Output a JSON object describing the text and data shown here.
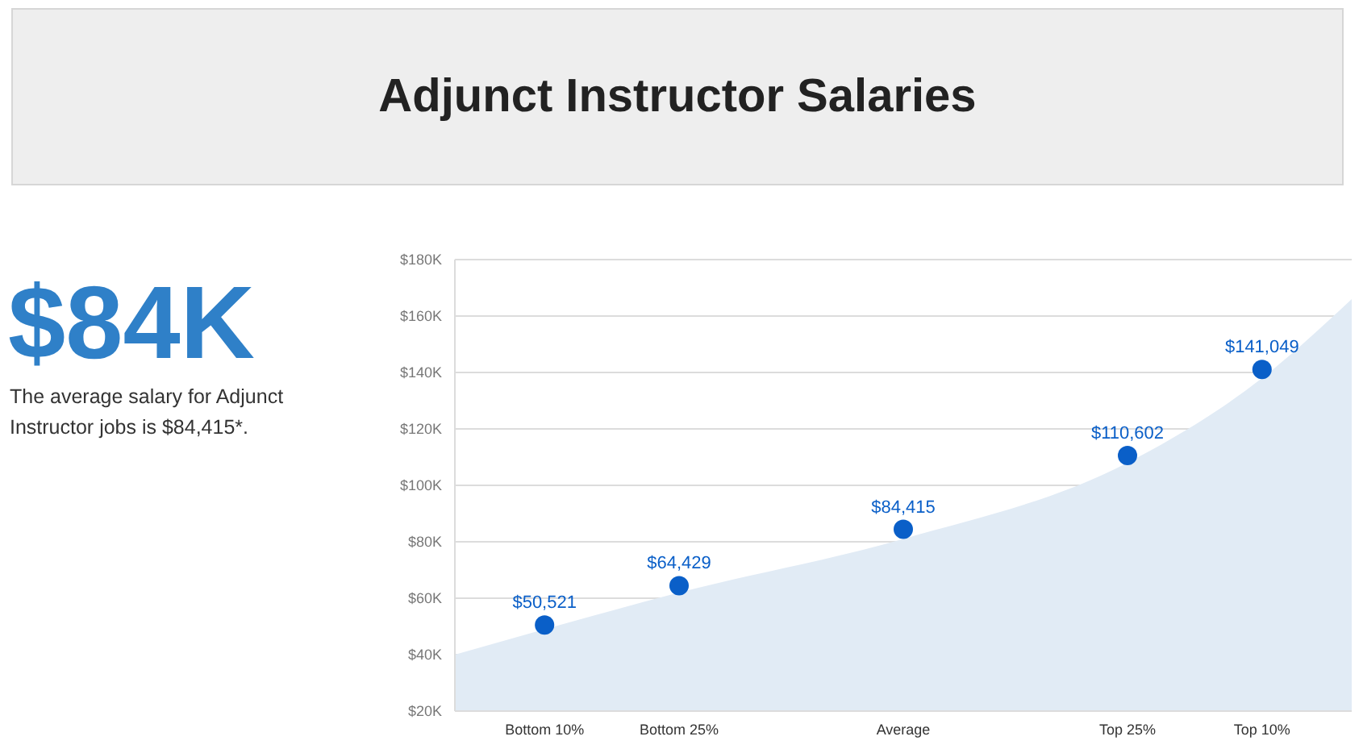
{
  "chart_data": {
    "type": "area",
    "title": "Adjunct Instructor Salaries",
    "annotations": [
      "$84K",
      "The average salary for Adjunct Instructor jobs is $84,415*."
    ],
    "categories": [
      null,
      null,
      "Bottom 10%",
      null,
      null,
      "Bottom 25%",
      null,
      null,
      null,
      null,
      "Average",
      null,
      null,
      null,
      null,
      "Top 25%",
      null,
      null,
      "Top 10%",
      null,
      null
    ],
    "ylim": [
      20000,
      180000
    ],
    "yticks": [
      {
        "value": 20000,
        "label": "$20K"
      },
      {
        "value": 40000,
        "label": "$40K"
      },
      {
        "value": 60000,
        "label": "$60K"
      },
      {
        "value": 80000,
        "label": "$80K"
      },
      {
        "value": 100000,
        "label": "$100K"
      },
      {
        "value": 120000,
        "label": "$120K"
      },
      {
        "value": 140000,
        "label": "$140K"
      },
      {
        "value": 160000,
        "label": "$160K"
      },
      {
        "value": 180000,
        "label": "$180K"
      }
    ],
    "grid": "y",
    "series": [
      {
        "color": "#e1ebf5",
        "values": [
          40000,
          null,
          49000,
          null,
          null,
          62000,
          null,
          null,
          null,
          null,
          81000,
          null,
          null,
          null,
          null,
          108000,
          null,
          null,
          138000,
          null,
          166000
        ]
      },
      {
        "type": "scatter",
        "color": "#0a5fc8",
        "marker": "circle",
        "values": [
          null,
          null,
          50521,
          null,
          null,
          64429,
          null,
          null,
          null,
          null,
          84415,
          null,
          null,
          null,
          null,
          110602,
          null,
          null,
          141049,
          null,
          null
        ],
        "value_labels": [
          null,
          null,
          "$50,521",
          null,
          null,
          "$64,429",
          null,
          null,
          null,
          null,
          "$84,415",
          null,
          null,
          null,
          null,
          "$110,602",
          null,
          null,
          "$141,049",
          null,
          null
        ]
      }
    ]
  }
}
